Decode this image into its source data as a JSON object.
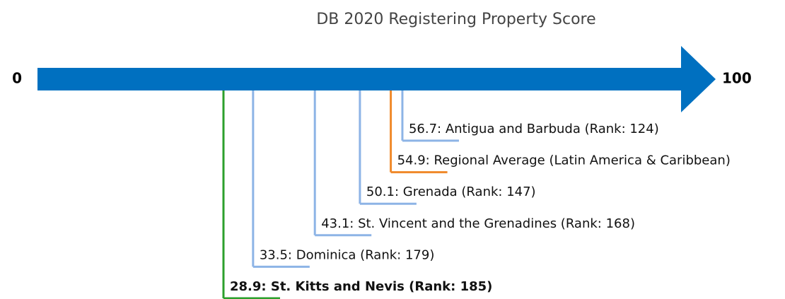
{
  "chart_data": {
    "type": "numberline",
    "title": "DB 2020 Registering Property Score",
    "xlim": [
      0,
      100
    ],
    "xticks": [
      0,
      100
    ],
    "axis_color": "#0070c0",
    "values": [
      56.7,
      54.9,
      50.1,
      43.1,
      33.5,
      28.9
    ],
    "value_labels": [
      "56.7: Antigua and Barbuda (Rank: 124)",
      "54.9: Regional Average (Latin America & Caribbean)",
      "50.1: Grenada (Rank: 147)",
      "43.1: St. Vincent and the Grenadines (Rank: 168)",
      "33.5: Dominica (Rank: 179)",
      "28.9: St. Kitts and Nevis (Rank: 185)"
    ],
    "colors": [
      "#8db4e6",
      "#f0892a",
      "#8db4e6",
      "#8db4e6",
      "#8db4e6",
      "#2ca02c"
    ],
    "bold": [
      false,
      false,
      false,
      false,
      false,
      true
    ]
  }
}
